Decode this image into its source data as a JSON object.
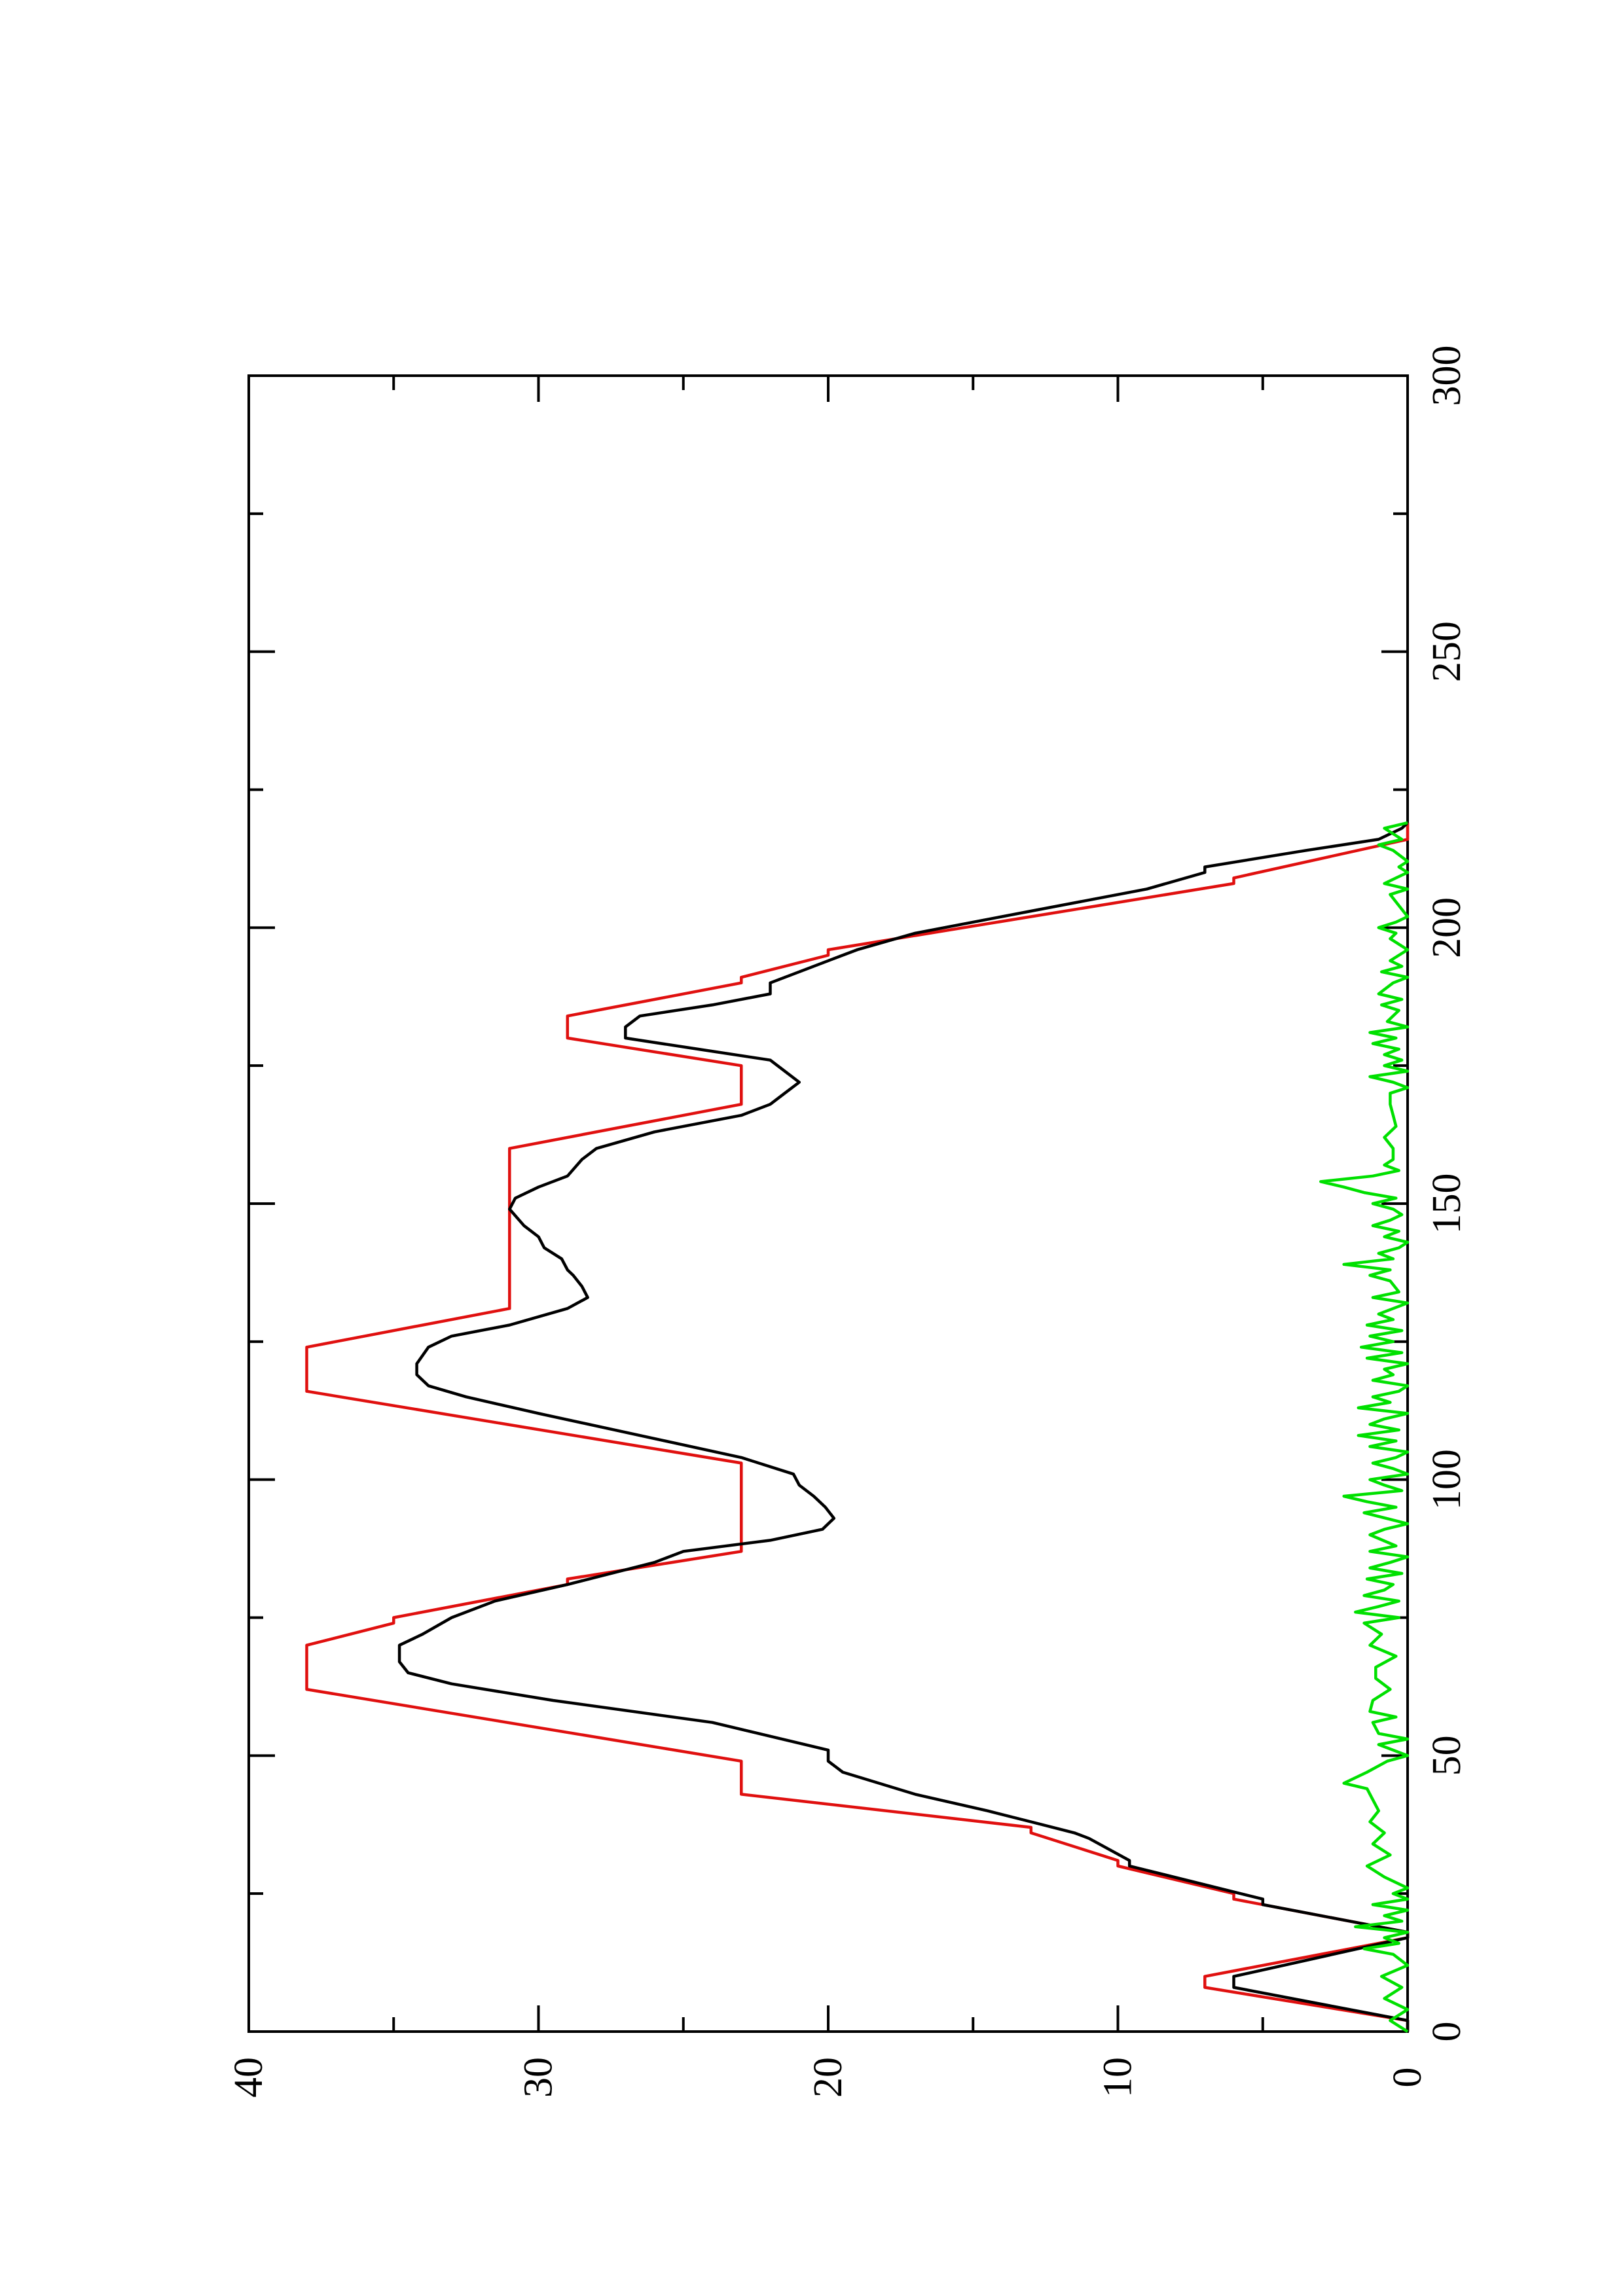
{
  "chart_data": {
    "type": "line",
    "orientation": "rotated-90-ccw",
    "title": "",
    "xlabel": "",
    "ylabel": "",
    "xlim": [
      0,
      300
    ],
    "ylim": [
      0,
      40
    ],
    "x_ticks": [
      0,
      50,
      100,
      150,
      200,
      250,
      300
    ],
    "x_tick_labels": [
      "0",
      "50",
      "100",
      "150",
      "200",
      "250",
      "300"
    ],
    "y_ticks": [
      0,
      10,
      20,
      30,
      40
    ],
    "y_tick_labels": [
      "0",
      "10",
      "20",
      "30",
      "40"
    ],
    "grid": false,
    "legend": "none",
    "series": [
      {
        "color": "#e0100f",
        "points": [
          [
            0,
            0
          ],
          [
            2,
            0
          ],
          [
            8,
            7
          ],
          [
            10,
            7
          ],
          [
            17,
            0
          ],
          [
            18,
            0
          ],
          [
            24,
            6
          ],
          [
            25,
            6
          ],
          [
            30,
            10
          ],
          [
            31,
            10
          ],
          [
            36,
            13
          ],
          [
            37,
            13
          ],
          [
            43,
            23
          ],
          [
            49,
            23
          ],
          [
            62,
            38
          ],
          [
            70,
            38
          ],
          [
            74,
            35
          ],
          [
            75,
            35
          ],
          [
            81,
            29
          ],
          [
            82,
            29
          ],
          [
            87,
            23
          ],
          [
            103,
            23
          ],
          [
            116,
            38
          ],
          [
            124,
            38
          ],
          [
            131,
            31
          ],
          [
            160,
            31
          ],
          [
            168,
            23
          ],
          [
            175,
            23
          ],
          [
            180,
            29
          ],
          [
            184,
            29
          ],
          [
            190,
            23
          ],
          [
            191,
            23
          ],
          [
            195,
            20
          ],
          [
            196,
            20
          ],
          [
            208,
            6
          ],
          [
            209,
            6
          ],
          [
            216,
            0
          ],
          [
            219,
            0
          ]
        ]
      },
      {
        "color": "#000000",
        "points": [
          [
            0,
            0
          ],
          [
            2,
            0
          ],
          [
            8,
            6
          ],
          [
            10,
            6
          ],
          [
            17,
            0
          ],
          [
            18,
            0
          ],
          [
            23,
            5
          ],
          [
            24,
            5
          ],
          [
            30,
            9.6
          ],
          [
            31,
            9.6
          ],
          [
            35,
            11
          ],
          [
            36,
            11.5
          ],
          [
            38,
            13
          ],
          [
            40,
            14.5
          ],
          [
            43,
            17
          ],
          [
            47,
            19.5
          ],
          [
            49,
            20
          ],
          [
            51,
            20
          ],
          [
            56,
            24
          ],
          [
            60,
            29.5
          ],
          [
            63,
            33
          ],
          [
            65,
            34.5
          ],
          [
            67,
            34.8
          ],
          [
            70,
            34.8
          ],
          [
            72,
            34
          ],
          [
            75,
            33
          ],
          [
            78,
            31.5
          ],
          [
            81,
            29
          ],
          [
            85,
            26
          ],
          [
            87,
            25
          ],
          [
            89,
            22
          ],
          [
            91,
            20.2
          ],
          [
            93,
            19.8
          ],
          [
            95,
            20.1
          ],
          [
            97,
            20.5
          ],
          [
            99,
            21
          ],
          [
            101,
            21.2
          ],
          [
            104,
            23
          ],
          [
            108,
            26.5
          ],
          [
            112,
            30
          ],
          [
            115,
            32.5
          ],
          [
            117,
            33.8
          ],
          [
            119,
            34.2
          ],
          [
            121,
            34.2
          ],
          [
            124,
            33.8
          ],
          [
            126,
            33
          ],
          [
            128,
            31
          ],
          [
            131,
            29
          ],
          [
            133,
            28.3
          ],
          [
            135,
            28.5
          ],
          [
            137,
            28.8
          ],
          [
            138,
            29
          ],
          [
            140,
            29.2
          ],
          [
            142,
            29.8
          ],
          [
            144,
            30
          ],
          [
            146,
            30.5
          ],
          [
            149,
            31
          ],
          [
            151,
            30.8
          ],
          [
            153,
            30
          ],
          [
            155,
            29
          ],
          [
            158,
            28.5
          ],
          [
            160,
            28
          ],
          [
            163,
            26
          ],
          [
            166,
            23
          ],
          [
            168,
            22
          ],
          [
            170,
            21.5
          ],
          [
            172,
            21
          ],
          [
            174,
            21.5
          ],
          [
            176,
            22
          ],
          [
            178,
            24.5
          ],
          [
            180,
            27
          ],
          [
            182,
            27
          ],
          [
            184,
            26.5
          ],
          [
            186,
            24
          ],
          [
            188,
            22
          ],
          [
            190,
            22
          ],
          [
            192,
            21
          ],
          [
            195,
            19.5
          ],
          [
            196,
            19
          ],
          [
            199,
            17
          ],
          [
            203,
            13
          ],
          [
            207,
            9
          ],
          [
            210,
            7
          ],
          [
            211,
            7
          ],
          [
            214,
            3.5
          ],
          [
            216,
            1
          ],
          [
            218,
            0.2
          ],
          [
            219,
            0
          ]
        ]
      },
      {
        "color": "#00e000",
        "points": [
          [
            0,
            0
          ],
          [
            2,
            0.6
          ],
          [
            4,
            0
          ],
          [
            6,
            0.8
          ],
          [
            8,
            0.2
          ],
          [
            10,
            0.9
          ],
          [
            12,
            0
          ],
          [
            14,
            0.5
          ],
          [
            15,
            1.5
          ],
          [
            16,
            0.3
          ],
          [
            17,
            0.8
          ],
          [
            18,
            0
          ],
          [
            19,
            1.8
          ],
          [
            20,
            0.2
          ],
          [
            21,
            0.8
          ],
          [
            22,
            0
          ],
          [
            23,
            1.2
          ],
          [
            24,
            0
          ],
          [
            25,
            0.5
          ],
          [
            26,
            0
          ],
          [
            28,
            0.8
          ],
          [
            30,
            1.4
          ],
          [
            32,
            0.6
          ],
          [
            34,
            1.2
          ],
          [
            36,
            0.8
          ],
          [
            38,
            1.3
          ],
          [
            40,
            1
          ],
          [
            42,
            1.2
          ],
          [
            44,
            1.4
          ],
          [
            45,
            2.2
          ],
          [
            47,
            1.4
          ],
          [
            49,
            0.7
          ],
          [
            50,
            0
          ],
          [
            52,
            1
          ],
          [
            53,
            0
          ],
          [
            54,
            1
          ],
          [
            56,
            1.2
          ],
          [
            57,
            0.4
          ],
          [
            58,
            1.3
          ],
          [
            60,
            1.2
          ],
          [
            62,
            0.6
          ],
          [
            64,
            1.1
          ],
          [
            66,
            1.1
          ],
          [
            68,
            0.4
          ],
          [
            70,
            1.3
          ],
          [
            72,
            0.9
          ],
          [
            74,
            1.5
          ],
          [
            75,
            0.3
          ],
          [
            76,
            1.8
          ],
          [
            77,
            1
          ],
          [
            78,
            0.3
          ],
          [
            79,
            1.5
          ],
          [
            80,
            0.8
          ],
          [
            81,
            0.5
          ],
          [
            82,
            1.4
          ],
          [
            83,
            0.2
          ],
          [
            84,
            1.3
          ],
          [
            85,
            0.6
          ],
          [
            86,
            0
          ],
          [
            87,
            1.3
          ],
          [
            88,
            0.4
          ],
          [
            90,
            1.3
          ],
          [
            91,
            0.8
          ],
          [
            92,
            0
          ],
          [
            94,
            1.5
          ],
          [
            95,
            0.4
          ],
          [
            96,
            1.4
          ],
          [
            97,
            2.2
          ],
          [
            98,
            0.2
          ],
          [
            99,
            0.8
          ],
          [
            100,
            1.3
          ],
          [
            101,
            0
          ],
          [
            102,
            0.5
          ],
          [
            103,
            1.2
          ],
          [
            104,
            0.4
          ],
          [
            105,
            0
          ],
          [
            106,
            1.3
          ],
          [
            107,
            0.4
          ],
          [
            108,
            1.7
          ],
          [
            109,
            0.3
          ],
          [
            110,
            1.3
          ],
          [
            111,
            0.8
          ],
          [
            112,
            0
          ],
          [
            113,
            1.7
          ],
          [
            114,
            0.6
          ],
          [
            115,
            1.2
          ],
          [
            116,
            0.3
          ],
          [
            117,
            0
          ],
          [
            118,
            1.2
          ],
          [
            119,
            0.5
          ],
          [
            120,
            0.8
          ],
          [
            121,
            0
          ],
          [
            122,
            1.4
          ],
          [
            123,
            0.2
          ],
          [
            124,
            1.6
          ],
          [
            125,
            0.5
          ],
          [
            126,
            1.3
          ],
          [
            127,
            0.2
          ],
          [
            128,
            1.4
          ],
          [
            129,
            0.5
          ],
          [
            130,
            1
          ],
          [
            132,
            0
          ],
          [
            133,
            1.2
          ],
          [
            134,
            0.3
          ],
          [
            136,
            0.6
          ],
          [
            137,
            1.3
          ],
          [
            138,
            0.6
          ],
          [
            139,
            2.2
          ],
          [
            140,
            0.5
          ],
          [
            141,
            1
          ],
          [
            142,
            0.3
          ],
          [
            143,
            0
          ],
          [
            144,
            0.8
          ],
          [
            145,
            0.3
          ],
          [
            146,
            1.2
          ],
          [
            147,
            0.6
          ],
          [
            148,
            0.2
          ],
          [
            149,
            0.5
          ],
          [
            150,
            1.2
          ],
          [
            151,
            0.4
          ],
          [
            152,
            1.5
          ],
          [
            153,
            2.2
          ],
          [
            154,
            3
          ],
          [
            155,
            1.2
          ],
          [
            156,
            0.3
          ],
          [
            157,
            0.8
          ],
          [
            158,
            0.5
          ],
          [
            160,
            0.5
          ],
          [
            162,
            0.8
          ],
          [
            164,
            0.4
          ],
          [
            166,
            0.5
          ],
          [
            168,
            0.6
          ],
          [
            170,
            0.6
          ],
          [
            171,
            0
          ],
          [
            172,
            0.5
          ],
          [
            173,
            1.3
          ],
          [
            174,
            0
          ],
          [
            175,
            0.8
          ],
          [
            176,
            0.2
          ],
          [
            177,
            0.8
          ],
          [
            178,
            0.3
          ],
          [
            179,
            1.2
          ],
          [
            180,
            0.4
          ],
          [
            181,
            1.3
          ],
          [
            182,
            0
          ],
          [
            183,
            0.7
          ],
          [
            185,
            0.3
          ],
          [
            186,
            0.9
          ],
          [
            187,
            0.2
          ],
          [
            188,
            1
          ],
          [
            190,
            0.5
          ],
          [
            191,
            0
          ],
          [
            192,
            0.9
          ],
          [
            193,
            0.2
          ],
          [
            194,
            0.6
          ],
          [
            196,
            0
          ],
          [
            198,
            0.6
          ],
          [
            199,
            0.4
          ],
          [
            200,
            1
          ],
          [
            201,
            0.4
          ],
          [
            202,
            0
          ],
          [
            204,
            0.3
          ],
          [
            206,
            0.6
          ],
          [
            207,
            0
          ],
          [
            208,
            0.8
          ],
          [
            209,
            0.4
          ],
          [
            210,
            0
          ],
          [
            211,
            0.3
          ],
          [
            212,
            0
          ],
          [
            214,
            0.5
          ],
          [
            215,
            1
          ],
          [
            216,
            0.2
          ],
          [
            218,
            0.8
          ],
          [
            219,
            0
          ]
        ]
      }
    ]
  }
}
